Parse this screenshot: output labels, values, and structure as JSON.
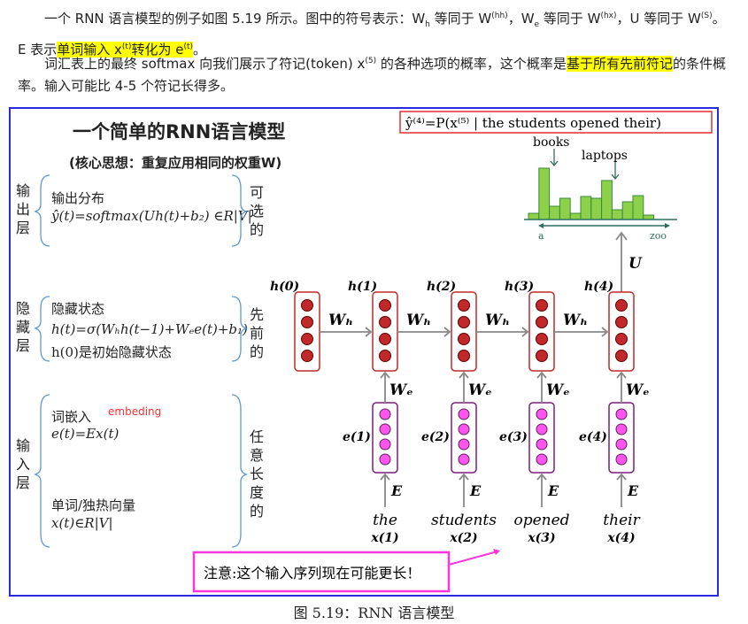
{
  "paragraphs": {
    "p1_a": "一个 RNN 语言模型的例子如图 5.19 所示。图中的符号表示：W",
    "p1_b": "h",
    "p1_c": " 等同于 W",
    "p1_d": "(hh)",
    "p1_e": "，W",
    "p1_f": "e",
    "p1_g": " 等同于 W",
    "p1_h": "(hx)",
    "p1_i": "，U 等同于 W",
    "p1_j": "(S)",
    "p1_k": "。E 表示",
    "p1_hl": "单词输入 x",
    "p1_hl_sup": "(t)",
    "p1_hl2": "转化为 e",
    "p1_hl2_sup": "(t)",
    "p1_end": "。",
    "p2_a": "词汇表上的最终 softmax 向我们展示了符记(token) x",
    "p2_sup": "(5)",
    "p2_b": " 的各种选项的概率，这个概率是",
    "p2_hl": "基于所有先前符记",
    "p2_c": "的条件概率。输入可能比 4-5 个符记长得多。"
  },
  "figure": {
    "title": "一个简单的RNN语言模型",
    "subtitle": "(核心思想：重复应用相同的权重W)",
    "formula_box": "ŷ⁽⁴⁾=P(x⁽⁵⁾ | the students opened their)",
    "hist": {
      "label_books": "books",
      "label_laptops": "laptops",
      "axis_start": "a",
      "axis_end": "zoo",
      "values": [
        7,
        58,
        15,
        24,
        7,
        26,
        24,
        44,
        11,
        20,
        27,
        5
      ],
      "bar_color": "#8dd04a"
    },
    "output_layer": {
      "side": "输出层",
      "title": "输出分布",
      "formula": "ŷ(t)=softmax(Uh(t)+b₂) ∈R|V|",
      "note": "可选的"
    },
    "hidden_layer": {
      "side": "隐藏层",
      "title": "隐藏状态",
      "formula": "h(t)=σ(Wₕh(t−1)+Wₑe(t)+b₁)",
      "init": "h(0)是初始隐藏状态",
      "note": "先前的"
    },
    "input_layer": {
      "side": "输入层",
      "embed_title": "词嵌入",
      "embed_tag": "embeding",
      "embed_formula": "e(t)=Ex(t)",
      "word_title": "单词/独热向量",
      "word_formula": "x(t)∈R|V|",
      "note": "任意长度的"
    },
    "hidden_labels": [
      "h(0)",
      "h(1)",
      "h(2)",
      "h(3)",
      "h(4)"
    ],
    "embed_labels": [
      "e(1)",
      "e(2)",
      "e(3)",
      "e(4)"
    ],
    "words": [
      "the",
      "students",
      "opened",
      "their"
    ],
    "x_labels": [
      "x(1)",
      "x(2)",
      "x(3)",
      "x(4)"
    ],
    "wh": "Wₕ",
    "we": "Wₑ",
    "e_mat": "E",
    "u_mat": "U",
    "note": "注意:这个输入序列现在可能更长！",
    "colors": {
      "hidden": "#c0282a",
      "embed": "#ff55ee",
      "embed_border": "#7a1f7a",
      "note_border": "#ff33dd",
      "frame": "#2a2ae0"
    }
  },
  "caption": "图 5.19：RNN 语言模型"
}
